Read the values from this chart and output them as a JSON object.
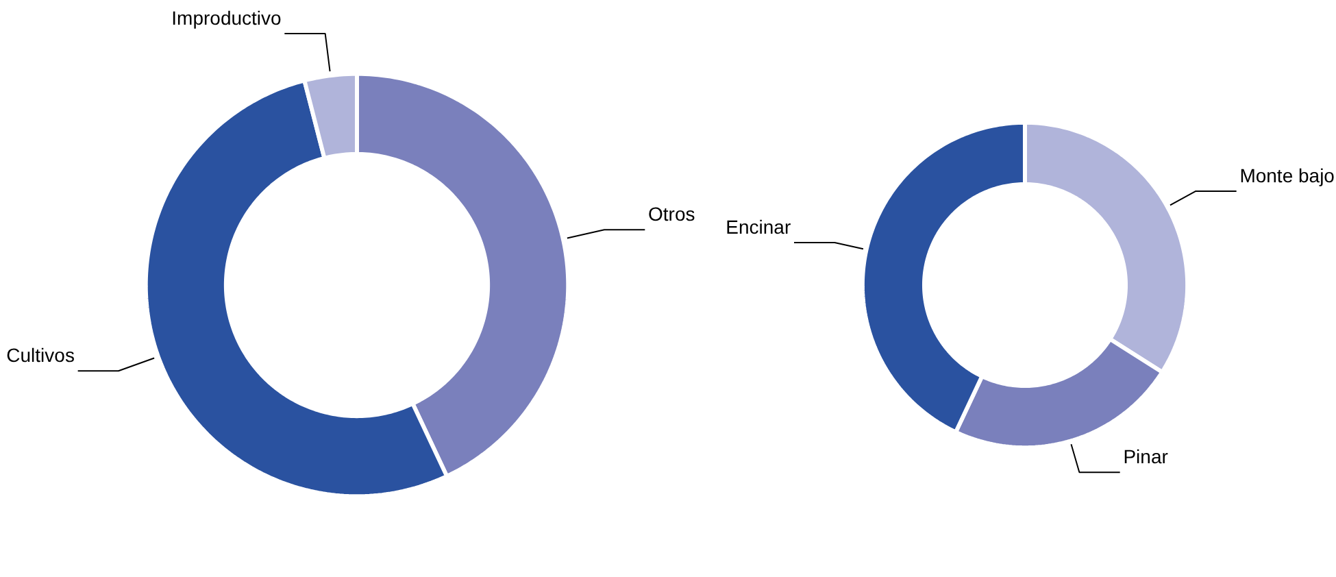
{
  "chart_data": [
    {
      "type": "donut",
      "categories": [
        "Otros",
        "Cultivos",
        "Improductivo"
      ],
      "values": [
        43,
        53,
        4
      ],
      "colors": [
        "#7a80bc",
        "#2a52a0",
        "#b0b4da"
      ]
    },
    {
      "type": "donut",
      "categories": [
        "Monte bajo",
        "Pinar",
        "Encinar"
      ],
      "values": [
        34,
        23,
        43
      ],
      "colors": [
        "#b0b4da",
        "#7a80bc",
        "#2a52a0"
      ]
    }
  ]
}
